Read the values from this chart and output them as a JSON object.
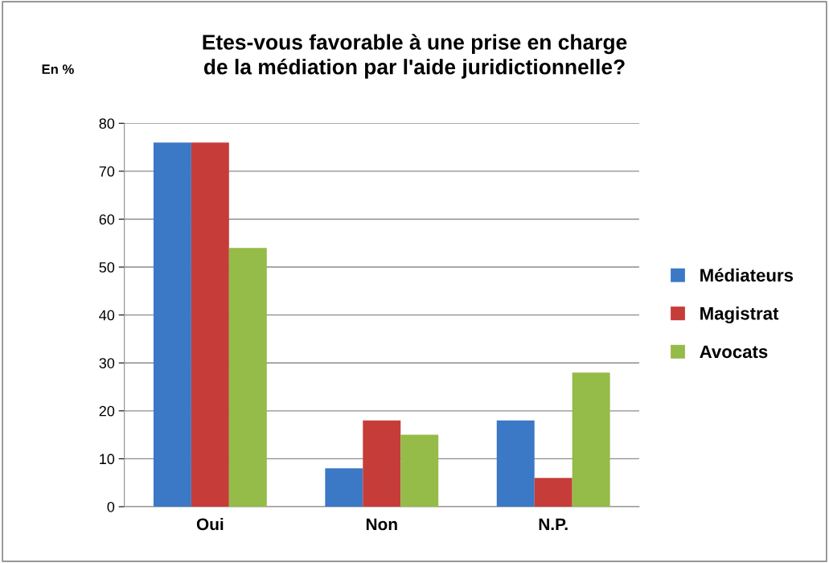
{
  "chart_data": {
    "type": "bar",
    "title": "Etes-vous favorable à une prise en charge de la médiation par l'aide juridictionnelle?",
    "ylabel": "En %",
    "categories": [
      "Oui",
      "Non",
      "N.P."
    ],
    "series": [
      {
        "name": "Médiateurs",
        "color": "#3b78c6",
        "values": [
          76,
          8,
          18
        ]
      },
      {
        "name": "Magistrat",
        "color": "#c63c38",
        "values": [
          76,
          18,
          6
        ]
      },
      {
        "name": "Avocats",
        "color": "#95bb48",
        "values": [
          54,
          15,
          28
        ]
      }
    ],
    "ylim": [
      0,
      80
    ],
    "yticks": [
      0,
      10,
      20,
      30,
      40,
      50,
      60,
      70,
      80
    ],
    "grid": "y",
    "legend": "right"
  }
}
